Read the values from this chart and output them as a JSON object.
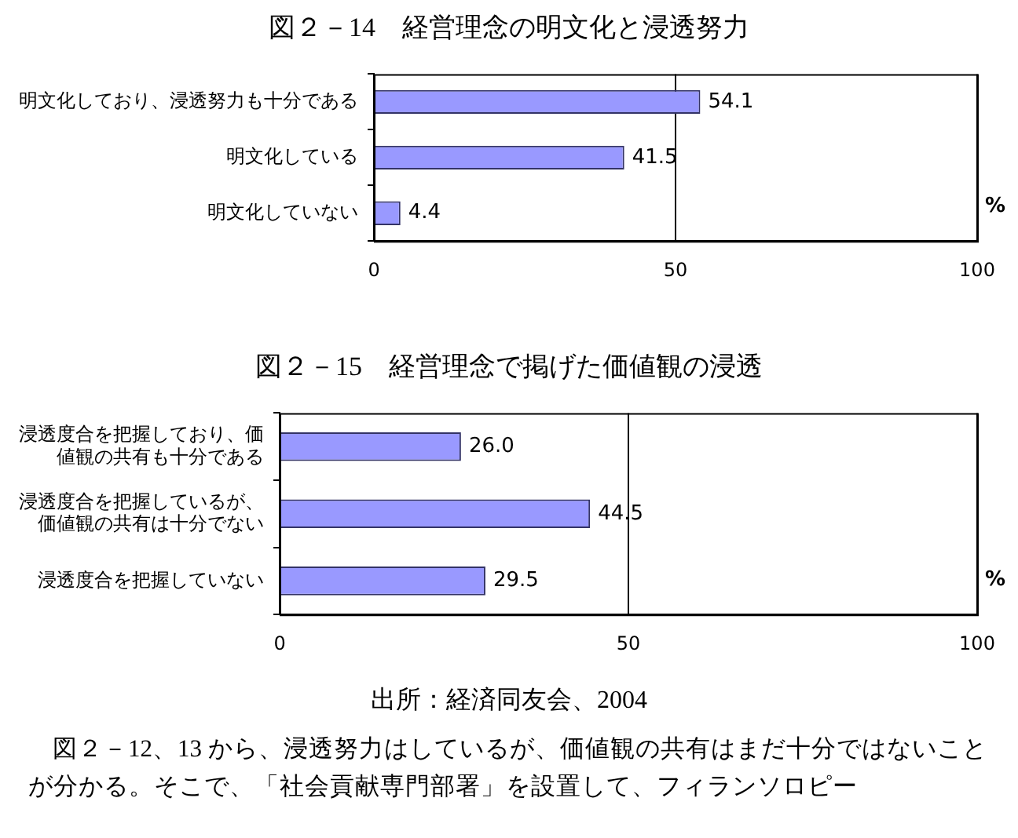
{
  "chart_data": [
    {
      "type": "bar",
      "orientation": "horizontal",
      "title": "図２－14　経営理念の明文化と浸透努力",
      "xlabel": "%",
      "categories": [
        "明文化しており、浸透努力も十分である",
        "明文化している",
        "明文化していない"
      ],
      "values": [
        54.1,
        41.5,
        4.4
      ],
      "color": "#9999ff",
      "xlim": [
        0,
        100
      ],
      "xticks": [
        0,
        50,
        100
      ],
      "grid": "x",
      "data_labels": true
    },
    {
      "type": "bar",
      "orientation": "horizontal",
      "title": "図２－15　経営理念で掲げた価値観の浸透",
      "xlabel": "%",
      "categories": [
        "浸透度合を把握しており、価値観の共有も十分である",
        "浸透度合を把握しているが、価値観の共有は十分でない",
        "浸透度合を把握していない"
      ],
      "values": [
        26.0,
        44.5,
        29.5
      ],
      "value_labels": [
        "26.0",
        "44.5",
        "29.5"
      ],
      "color": "#9999ff",
      "xlim": [
        0,
        100
      ],
      "xticks": [
        0,
        50,
        100
      ],
      "grid": "x",
      "annotations": [
        "出所：経済同友会、2004",
        "図２－12、13 から、浸透努力はしているが、価値観の共有はまだ十分ではないことが分かる。そこで、「社会貢献専門部署」を設置して、フィランソロピー"
      ]
    }
  ]
}
